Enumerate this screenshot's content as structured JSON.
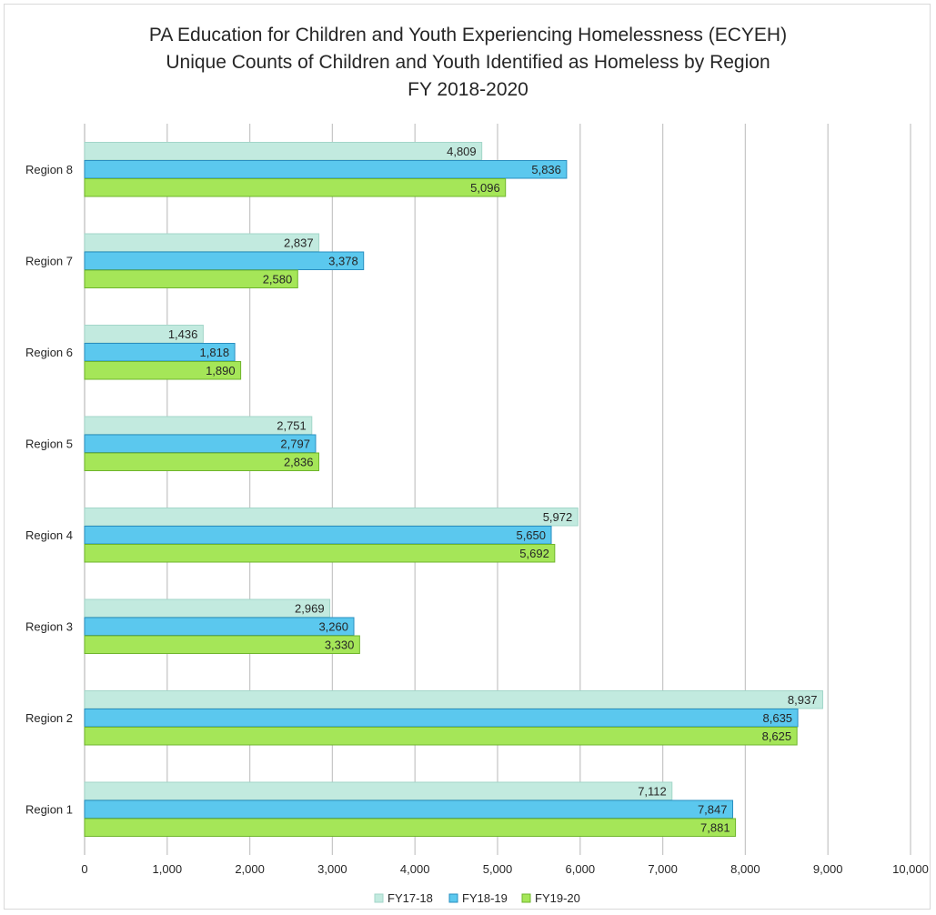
{
  "chart_data": {
    "type": "bar",
    "orientation": "horizontal",
    "title_lines": [
      "PA Education for Children and Youth Experiencing Homelessness (ECYEH)",
      "Unique Counts of Children and Youth Identified as Homeless by Region",
      "FY 2018-2020"
    ],
    "categories": [
      "Region 8",
      "Region 7",
      "Region 6",
      "Region 5",
      "Region 4",
      "Region 3",
      "Region 2",
      "Region 1"
    ],
    "series": [
      {
        "name": "FY17-18",
        "color": "#c2eadf",
        "stroke": "#a3d6c9",
        "values": [
          4809,
          2837,
          1436,
          2751,
          5972,
          2969,
          8937,
          7112
        ],
        "labels": [
          "4,809",
          "2,837",
          "1,436",
          "2,751",
          "5,972",
          "2,969",
          "8,937",
          "7,112"
        ]
      },
      {
        "name": "FY18-19",
        "color": "#5bc8ee",
        "stroke": "#2a8fc0",
        "values": [
          5836,
          3378,
          1818,
          2797,
          5650,
          3260,
          8635,
          7847
        ],
        "labels": [
          "5,836",
          "3,378",
          "1,818",
          "2,797",
          "5,650",
          "3,260",
          "8,635",
          "7,847"
        ]
      },
      {
        "name": "FY19-20",
        "color": "#a5e658",
        "stroke": "#6fb52c",
        "values": [
          5096,
          2580,
          1890,
          2836,
          5692,
          3330,
          8625,
          7881
        ],
        "labels": [
          "5,096",
          "2,580",
          "1,890",
          "2,836",
          "5,692",
          "3,330",
          "8,625",
          "7,881"
        ]
      }
    ],
    "xlim": [
      0,
      10000
    ],
    "xticks": [
      0,
      1000,
      2000,
      3000,
      4000,
      5000,
      6000,
      7000,
      8000,
      9000,
      10000
    ],
    "xtick_labels": [
      "0",
      "1,000",
      "2,000",
      "3,000",
      "4,000",
      "5,000",
      "6,000",
      "7,000",
      "8,000",
      "9,000",
      "10,000"
    ],
    "grid": true,
    "legend": "bottom-center"
  }
}
